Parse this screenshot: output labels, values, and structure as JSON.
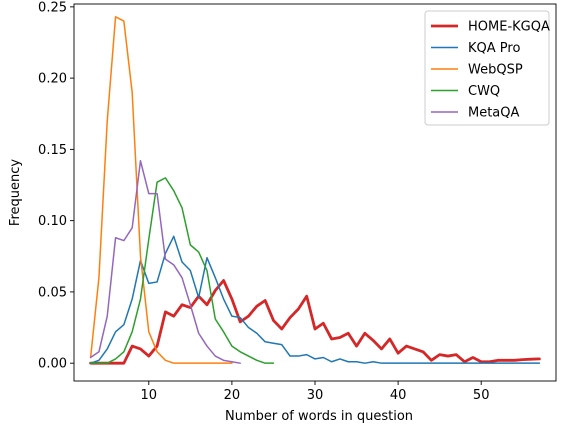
{
  "chart_data": {
    "type": "line",
    "xlabel": "Number of words in question",
    "ylabel": "Frequency",
    "xlim": [
      1,
      59
    ],
    "ylim": [
      -0.0125,
      0.252
    ],
    "xticks": [
      10,
      20,
      30,
      40,
      50
    ],
    "yticks": [
      0.0,
      0.05,
      0.1,
      0.15,
      0.2,
      0.25
    ],
    "ytick_labels": [
      "0.00",
      "0.05",
      "0.10",
      "0.15",
      "0.20",
      "0.25"
    ],
    "grid": false,
    "legend_position": "top-right",
    "series": [
      {
        "name": "HOME-KGQA",
        "color": "#d62728",
        "width": 2.8,
        "points": [
          [
            3,
            0.0
          ],
          [
            4,
            0.0
          ],
          [
            5,
            0.0
          ],
          [
            6,
            0.0
          ],
          [
            7,
            0.0
          ],
          [
            8,
            0.012
          ],
          [
            9,
            0.01
          ],
          [
            10,
            0.005
          ],
          [
            11,
            0.012
          ],
          [
            12,
            0.036
          ],
          [
            13,
            0.033
          ],
          [
            14,
            0.041
          ],
          [
            15,
            0.039
          ],
          [
            16,
            0.047
          ],
          [
            17,
            0.041
          ],
          [
            18,
            0.051
          ],
          [
            19,
            0.058
          ],
          [
            20,
            0.045
          ],
          [
            21,
            0.029
          ],
          [
            22,
            0.033
          ],
          [
            23,
            0.04
          ],
          [
            24,
            0.044
          ],
          [
            25,
            0.03
          ],
          [
            26,
            0.024
          ],
          [
            27,
            0.032
          ],
          [
            28,
            0.038
          ],
          [
            29,
            0.047
          ],
          [
            30,
            0.024
          ],
          [
            31,
            0.028
          ],
          [
            32,
            0.017
          ],
          [
            33,
            0.018
          ],
          [
            34,
            0.021
          ],
          [
            35,
            0.012
          ],
          [
            36,
            0.021
          ],
          [
            37,
            0.016
          ],
          [
            38,
            0.01
          ],
          [
            39,
            0.017
          ],
          [
            40,
            0.007
          ],
          [
            41,
            0.012
          ],
          [
            42,
            0.01
          ],
          [
            43,
            0.008
          ],
          [
            44,
            0.002
          ],
          [
            45,
            0.006
          ],
          [
            46,
            0.005
          ],
          [
            47,
            0.006
          ],
          [
            48,
            0.001
          ],
          [
            49,
            0.004
          ],
          [
            50,
            0.001
          ],
          [
            51,
            0.001
          ],
          [
            52,
            0.002
          ],
          [
            53,
            0.002
          ],
          [
            54,
            0.002
          ],
          [
            55,
            0.0025
          ],
          [
            56,
            0.0028
          ],
          [
            57,
            0.003
          ]
        ]
      },
      {
        "name": "KQA Pro",
        "color": "#1f77b4",
        "width": 1.5,
        "points": [
          [
            3,
            0.0
          ],
          [
            4,
            0.002
          ],
          [
            5,
            0.01
          ],
          [
            6,
            0.022
          ],
          [
            7,
            0.027
          ],
          [
            8,
            0.045
          ],
          [
            9,
            0.072
          ],
          [
            10,
            0.056
          ],
          [
            11,
            0.057
          ],
          [
            12,
            0.077
          ],
          [
            13,
            0.089
          ],
          [
            14,
            0.071
          ],
          [
            15,
            0.065
          ],
          [
            16,
            0.046
          ],
          [
            17,
            0.074
          ],
          [
            18,
            0.06
          ],
          [
            19,
            0.045
          ],
          [
            20,
            0.033
          ],
          [
            21,
            0.032
          ],
          [
            22,
            0.025
          ],
          [
            23,
            0.021
          ],
          [
            24,
            0.015
          ],
          [
            25,
            0.014
          ],
          [
            26,
            0.013
          ],
          [
            27,
            0.005
          ],
          [
            28,
            0.005
          ],
          [
            29,
            0.006
          ],
          [
            30,
            0.003
          ],
          [
            31,
            0.004
          ],
          [
            32,
            0.001
          ],
          [
            33,
            0.003
          ],
          [
            34,
            0.001
          ],
          [
            35,
            0.001
          ],
          [
            36,
            0.0
          ],
          [
            37,
            0.001
          ],
          [
            38,
            0.0
          ],
          [
            39,
            0.0
          ],
          [
            40,
            0.0
          ],
          [
            45,
            0.0
          ],
          [
            50,
            0.0
          ],
          [
            55,
            0.0
          ],
          [
            57,
            0.0
          ]
        ]
      },
      {
        "name": "WebQSP",
        "color": "#ff7f0e",
        "width": 1.5,
        "points": [
          [
            3,
            0.004
          ],
          [
            4,
            0.06
          ],
          [
            5,
            0.17
          ],
          [
            6,
            0.243
          ],
          [
            7,
            0.24
          ],
          [
            8,
            0.19
          ],
          [
            9,
            0.075
          ],
          [
            10,
            0.022
          ],
          [
            11,
            0.008
          ],
          [
            12,
            0.002
          ],
          [
            13,
            0.0
          ],
          [
            14,
            0.0
          ],
          [
            15,
            0.0
          ],
          [
            16,
            0.0
          ],
          [
            18,
            0.0
          ],
          [
            20,
            0.0
          ]
        ]
      },
      {
        "name": "CWQ",
        "color": "#2ca02c",
        "width": 1.5,
        "points": [
          [
            3,
            0.0
          ],
          [
            4,
            0.0
          ],
          [
            5,
            0.0
          ],
          [
            6,
            0.003
          ],
          [
            7,
            0.008
          ],
          [
            8,
            0.022
          ],
          [
            9,
            0.045
          ],
          [
            10,
            0.087
          ],
          [
            11,
            0.127
          ],
          [
            12,
            0.13
          ],
          [
            13,
            0.121
          ],
          [
            14,
            0.109
          ],
          [
            15,
            0.083
          ],
          [
            16,
            0.078
          ],
          [
            17,
            0.065
          ],
          [
            18,
            0.031
          ],
          [
            19,
            0.022
          ],
          [
            20,
            0.012
          ],
          [
            21,
            0.008
          ],
          [
            22,
            0.005
          ],
          [
            23,
            0.002
          ],
          [
            24,
            0.0
          ],
          [
            25,
            0.0
          ]
        ]
      },
      {
        "name": "MetaQA",
        "color": "#9467bd",
        "width": 1.5,
        "points": [
          [
            3,
            0.004
          ],
          [
            4,
            0.008
          ],
          [
            5,
            0.033
          ],
          [
            6,
            0.088
          ],
          [
            7,
            0.086
          ],
          [
            8,
            0.095
          ],
          [
            9,
            0.142
          ],
          [
            10,
            0.119
          ],
          [
            11,
            0.119
          ],
          [
            12,
            0.073
          ],
          [
            13,
            0.069
          ],
          [
            14,
            0.06
          ],
          [
            15,
            0.041
          ],
          [
            16,
            0.021
          ],
          [
            17,
            0.012
          ],
          [
            18,
            0.005
          ],
          [
            19,
            0.002
          ],
          [
            20,
            0.001
          ],
          [
            21,
            0.0
          ]
        ]
      }
    ]
  }
}
